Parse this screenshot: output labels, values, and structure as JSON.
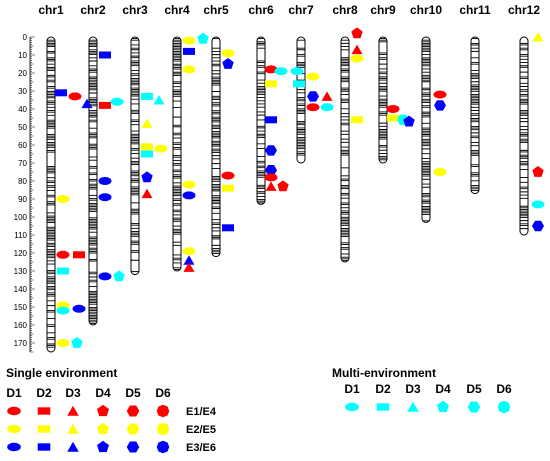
{
  "chromosomes": [
    {
      "name": "chr1",
      "length": 175
    },
    {
      "name": "chr2",
      "length": 160
    },
    {
      "name": "chr3",
      "length": 132
    },
    {
      "name": "chr4",
      "length": 130
    },
    {
      "name": "chr5",
      "length": 122
    },
    {
      "name": "chr6",
      "length": 93
    },
    {
      "name": "chr7",
      "length": 70
    },
    {
      "name": "chr8",
      "length": 125
    },
    {
      "name": "chr9",
      "length": 70
    },
    {
      "name": "chr10",
      "length": 103
    },
    {
      "name": "chr11",
      "length": 87
    },
    {
      "name": "chr12",
      "length": 110
    }
  ],
  "scale_ticks": [
    "0",
    "10",
    "20",
    "30",
    "40",
    "50",
    "60",
    "70",
    "80",
    "90",
    "100",
    "110",
    "120",
    "130",
    "140",
    "150",
    "160",
    "170"
  ],
  "colors": {
    "E1/E4": "#ff0000",
    "E2/E5": "#ffff00",
    "E3/E6": "#0000ff",
    "multi": "#00ffff"
  },
  "markers": [
    {
      "chr": 1,
      "pos": 31,
      "shape": "rect",
      "color": "E3/E6",
      "dx": 10
    },
    {
      "chr": 1,
      "pos": 33,
      "shape": "ellipse",
      "color": "E1/E4",
      "dx": 24
    },
    {
      "chr": 1,
      "pos": 37,
      "shape": "triangle",
      "color": "E3/E6",
      "dx": 36
    },
    {
      "chr": 1,
      "pos": 90,
      "shape": "ellipse",
      "color": "E2/E5",
      "dx": 12
    },
    {
      "chr": 1,
      "pos": 121,
      "shape": "ellipse",
      "color": "E1/E4",
      "dx": 12
    },
    {
      "chr": 1,
      "pos": 121,
      "shape": "rect",
      "color": "E1/E4",
      "dx": 28
    },
    {
      "chr": 1,
      "pos": 130,
      "shape": "rect",
      "color": "multi",
      "dx": 12
    },
    {
      "chr": 1,
      "pos": 149,
      "shape": "ellipse",
      "color": "E2/E5",
      "dx": 12
    },
    {
      "chr": 1,
      "pos": 152,
      "shape": "ellipse",
      "color": "multi",
      "dx": 12
    },
    {
      "chr": 1,
      "pos": 151,
      "shape": "ellipse",
      "color": "E3/E6",
      "dx": 28
    },
    {
      "chr": 1,
      "pos": 170,
      "shape": "ellipse",
      "color": "E2/E5",
      "dx": 12
    },
    {
      "chr": 1,
      "pos": 170,
      "shape": "pentagon",
      "color": "multi",
      "dx": 26
    },
    {
      "chr": 2,
      "pos": 10,
      "shape": "rect",
      "color": "E3/E6",
      "dx": 12
    },
    {
      "chr": 2,
      "pos": 38,
      "shape": "rect",
      "color": "E1/E4",
      "dx": 12
    },
    {
      "chr": 2,
      "pos": 36,
      "shape": "ellipse",
      "color": "multi",
      "dx": 24
    },
    {
      "chr": 2,
      "pos": 80,
      "shape": "ellipse",
      "color": "E3/E6",
      "dx": 12
    },
    {
      "chr": 2,
      "pos": 89,
      "shape": "ellipse",
      "color": "E3/E6",
      "dx": 12
    },
    {
      "chr": 2,
      "pos": 133,
      "shape": "ellipse",
      "color": "E3/E6",
      "dx": 12
    },
    {
      "chr": 2,
      "pos": 133,
      "shape": "pentagon",
      "color": "multi",
      "dx": 26
    },
    {
      "chr": 3,
      "pos": 33,
      "shape": "rect",
      "color": "multi",
      "dx": 12
    },
    {
      "chr": 3,
      "pos": 35,
      "shape": "triangle",
      "color": "multi",
      "dx": 24
    },
    {
      "chr": 3,
      "pos": 48,
      "shape": "triangle",
      "color": "E2/E5",
      "dx": 12
    },
    {
      "chr": 3,
      "pos": 61,
      "shape": "rect",
      "color": "E2/E5",
      "dx": 12
    },
    {
      "chr": 3,
      "pos": 62,
      "shape": "ellipse",
      "color": "E2/E5",
      "dx": 26
    },
    {
      "chr": 3,
      "pos": 65,
      "shape": "rect",
      "color": "multi",
      "dx": 12
    },
    {
      "chr": 3,
      "pos": 78,
      "shape": "pentagon",
      "color": "E3/E6",
      "dx": 12
    },
    {
      "chr": 3,
      "pos": 87,
      "shape": "triangle",
      "color": "E1/E4",
      "dx": 12
    },
    {
      "chr": 4,
      "pos": 2,
      "shape": "ellipse",
      "color": "E2/E5",
      "dx": 12
    },
    {
      "chr": 4,
      "pos": 1,
      "shape": "pentagon",
      "color": "multi",
      "dx": 26
    },
    {
      "chr": 4,
      "pos": 8,
      "shape": "rect",
      "color": "E3/E6",
      "dx": 12
    },
    {
      "chr": 4,
      "pos": 18,
      "shape": "ellipse",
      "color": "E2/E5",
      "dx": 12
    },
    {
      "chr": 4,
      "pos": 82,
      "shape": "ellipse",
      "color": "E2/E5",
      "dx": 12
    },
    {
      "chr": 4,
      "pos": 88,
      "shape": "ellipse",
      "color": "E3/E6",
      "dx": 12
    },
    {
      "chr": 4,
      "pos": 119,
      "shape": "ellipse",
      "color": "E2/E5",
      "dx": 12
    },
    {
      "chr": 4,
      "pos": 124,
      "shape": "triangle",
      "color": "E3/E6",
      "dx": 12
    },
    {
      "chr": 4,
      "pos": 128,
      "shape": "triangle",
      "color": "E1/E4",
      "dx": 12
    },
    {
      "chr": 5,
      "pos": 9,
      "shape": "ellipse",
      "color": "E2/E5",
      "dx": 12
    },
    {
      "chr": 5,
      "pos": 15,
      "shape": "pentagon",
      "color": "E3/E6",
      "dx": 12
    },
    {
      "chr": 5,
      "pos": 77,
      "shape": "ellipse",
      "color": "E1/E4",
      "dx": 12
    },
    {
      "chr": 5,
      "pos": 84,
      "shape": "rect",
      "color": "E2/E5",
      "dx": 12
    },
    {
      "chr": 5,
      "pos": 106,
      "shape": "rect",
      "color": "E3/E6",
      "dx": 12
    },
    {
      "chr": 6,
      "pos": 18,
      "shape": "ellipse",
      "color": "E1/E4",
      "dx": 10
    },
    {
      "chr": 6,
      "pos": 19,
      "shape": "ellipse",
      "color": "multi",
      "dx": 20
    },
    {
      "chr": 6,
      "pos": 26,
      "shape": "rect",
      "color": "E2/E5",
      "dx": 10
    },
    {
      "chr": 6,
      "pos": 46,
      "shape": "rect",
      "color": "E3/E6",
      "dx": 10
    },
    {
      "chr": 6,
      "pos": 63,
      "shape": "hexagon",
      "color": "E3/E6",
      "dx": 10
    },
    {
      "chr": 6,
      "pos": 74,
      "shape": "hexagon",
      "color": "E3/E6",
      "dx": 10
    },
    {
      "chr": 6,
      "pos": 78,
      "shape": "ellipse",
      "color": "E1/E4",
      "dx": 10
    },
    {
      "chr": 6,
      "pos": 83,
      "shape": "triangle",
      "color": "E1/E4",
      "dx": 10
    },
    {
      "chr": 6,
      "pos": 83,
      "shape": "pentagon",
      "color": "E1/E4",
      "dx": 22
    },
    {
      "chr": 7,
      "pos": 19,
      "shape": "ellipse",
      "color": "multi",
      "dx": -4
    },
    {
      "chr": 7,
      "pos": 26,
      "shape": "rect",
      "color": "multi",
      "dx": -2
    },
    {
      "chr": 7,
      "pos": 22,
      "shape": "ellipse",
      "color": "E2/E5",
      "dx": 12
    },
    {
      "chr": 7,
      "pos": 33,
      "shape": "hexagon",
      "color": "E3/E6",
      "dx": 12
    },
    {
      "chr": 7,
      "pos": 33,
      "shape": "triangle",
      "color": "E1/E4",
      "dx": 26
    },
    {
      "chr": 7,
      "pos": 39,
      "shape": "ellipse",
      "color": "E1/E4",
      "dx": 12
    },
    {
      "chr": 7,
      "pos": 39,
      "shape": "ellipse",
      "color": "multi",
      "dx": 26
    },
    {
      "chr": 8,
      "pos": -2,
      "shape": "pentagon",
      "color": "E1/E4",
      "dx": 12
    },
    {
      "chr": 8,
      "pos": 7,
      "shape": "triangle",
      "color": "E1/E4",
      "dx": 12
    },
    {
      "chr": 8,
      "pos": 12,
      "shape": "ellipse",
      "color": "E2/E5",
      "dx": 12
    },
    {
      "chr": 8,
      "pos": 46,
      "shape": "rect",
      "color": "E2/E5",
      "dx": 12
    },
    {
      "chr": 9,
      "pos": 40,
      "shape": "ellipse",
      "color": "E1/E4",
      "dx": 10
    },
    {
      "chr": 9,
      "pos": 45,
      "shape": "rect",
      "color": "E2/E5",
      "dx": 10
    },
    {
      "chr": 9,
      "pos": 46,
      "shape": "hexagon",
      "color": "multi",
      "dx": 20
    },
    {
      "chr": 9,
      "pos": 47,
      "shape": "pentagon",
      "color": "E3/E6",
      "dx": 26
    },
    {
      "chr": 10,
      "pos": 32,
      "shape": "ellipse",
      "color": "E1/E4",
      "dx": 14
    },
    {
      "chr": 10,
      "pos": 38,
      "shape": "hexagon",
      "color": "E3/E6",
      "dx": 14
    },
    {
      "chr": 10,
      "pos": 75,
      "shape": "ellipse",
      "color": "E2/E5",
      "dx": 14
    },
    {
      "chr": 12,
      "pos": 0,
      "shape": "triangle",
      "color": "E2/E5",
      "dx": 14
    },
    {
      "chr": 12,
      "pos": 75,
      "shape": "pentagon",
      "color": "E1/E4",
      "dx": 14
    },
    {
      "chr": 12,
      "pos": 93,
      "shape": "ellipse",
      "color": "multi",
      "dx": 14
    },
    {
      "chr": 12,
      "pos": 105,
      "shape": "hexagon",
      "color": "E3/E6",
      "dx": 14
    }
  ],
  "legend_single": {
    "title": "Single environment",
    "columns": [
      "D1",
      "D2",
      "D3",
      "D4",
      "D5",
      "D6"
    ],
    "rows": [
      {
        "label": "E1/E4",
        "color": "E1/E4"
      },
      {
        "label": "E2/E5",
        "color": "E2/E5"
      },
      {
        "label": "E3/E6",
        "color": "E3/E6"
      }
    ]
  },
  "legend_multi": {
    "title": "Multi-environment",
    "columns": [
      "D1",
      "D2",
      "D3",
      "D4",
      "D5",
      "D6"
    ]
  }
}
